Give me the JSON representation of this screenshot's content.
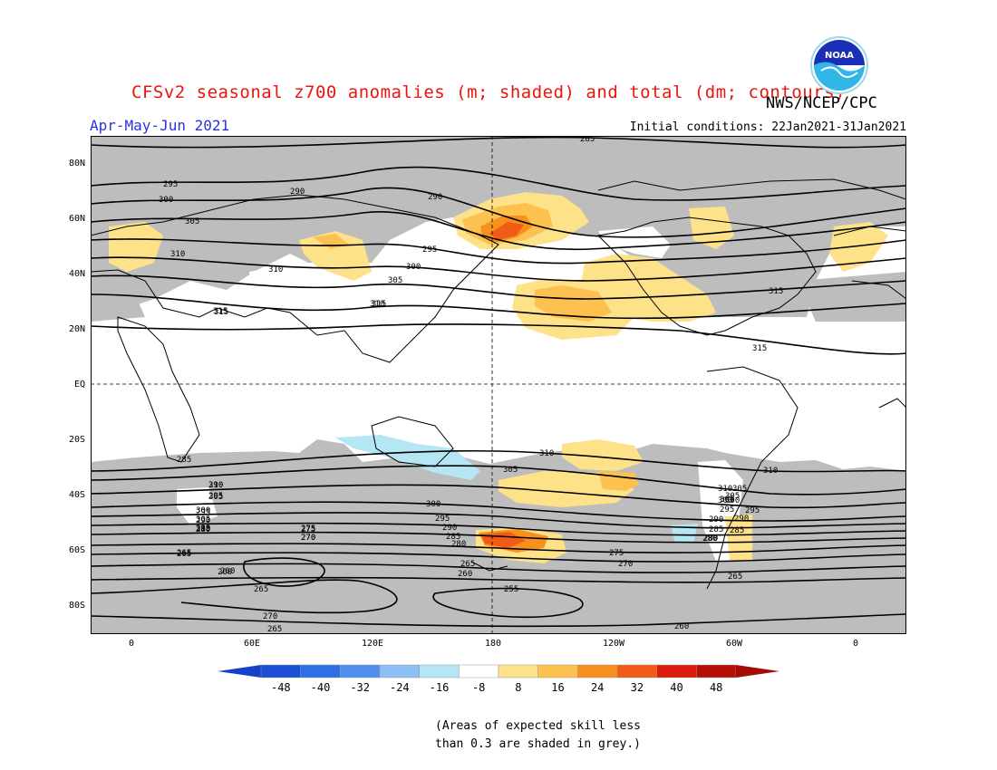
{
  "header": {
    "title": "CFSv2 seasonal z700 anomalies (m; shaded) and total (dm; contours)",
    "agency": "NWS/NCEP/CPC",
    "season": "Apr-May-Jun 2021",
    "initial_conditions": "Initial conditions: 22Jan2021-31Jan2021",
    "logo_text": "NOAA"
  },
  "axes": {
    "lat_labels": [
      "80N",
      "60N",
      "40N",
      "20N",
      "EQ",
      "20S",
      "40S",
      "60S",
      "80S"
    ],
    "lon_labels": [
      "0",
      "60E",
      "120E",
      "180",
      "120W",
      "60W",
      "0"
    ]
  },
  "contour_labels": [
    "285",
    "290",
    "295",
    "300",
    "305",
    "310",
    "310",
    "315",
    "315",
    "285",
    "290",
    "295",
    "300",
    "305",
    "310",
    "290",
    "295",
    "300",
    "305",
    "310",
    "315",
    "315",
    "310",
    "305",
    "310",
    "300",
    "305",
    "295",
    "290",
    "285",
    "280",
    "275",
    "270",
    "265",
    "260",
    "310",
    "305",
    "300",
    "295",
    "290",
    "285",
    "280",
    "265",
    "260",
    "255",
    "275",
    "270",
    "265",
    "260",
    "305",
    "300",
    "295",
    "290",
    "285",
    "280",
    "265",
    "315",
    "310",
    "305",
    "295",
    "290",
    "285",
    "280",
    "275",
    "270",
    "265",
    "260",
    "270",
    "265"
  ],
  "colorbar": {
    "ticks": [
      "-48",
      "-40",
      "-32",
      "-24",
      "-16",
      "-8",
      "8",
      "16",
      "24",
      "32",
      "40",
      "48"
    ],
    "colors": [
      "#1a4fd6",
      "#2d6fe6",
      "#4f8ff0",
      "#8cc0f4",
      "#b4e6f4",
      "#ffffff",
      "#fde28a",
      "#fcc14f",
      "#f7911e",
      "#f15a17",
      "#dc1d0d",
      "#b50f06"
    ],
    "low_color": "#1641c8",
    "high_color": "#a50b05"
  },
  "colors": {
    "title": "#e8160e",
    "season": "#2a32e0",
    "skill_grey": "#bdbdbd"
  },
  "note": {
    "line1": "(Areas of expected skill less",
    "line2": "than 0.3 are shaded in grey.)"
  }
}
